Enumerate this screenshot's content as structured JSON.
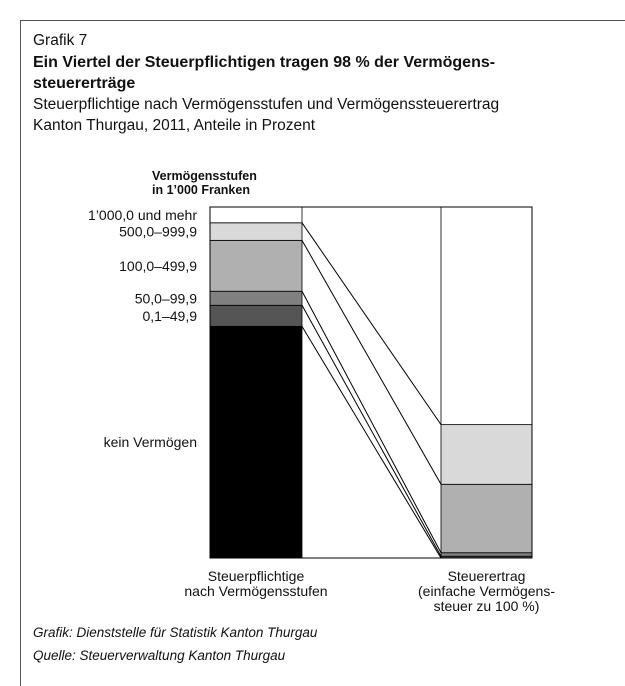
{
  "chart_data": {
    "type": "stacked_bar_100",
    "label": "Grafik 7",
    "title": [
      "Ein Viertel der Steuerpflichtigen tragen 98 % der Vermögens-",
      "steuererträge"
    ],
    "subtitle": [
      "Steuerpflichtige nach Vermögensstufen und Vermögenssteuerertrag",
      "Kanton Thurgau, 2011, Anteile in Prozent"
    ],
    "legend_title": [
      "Vermögensstufen",
      "in 1’000 Franken"
    ],
    "categories": [
      [
        "Steuerpflichtige",
        "nach Vermögensstufen"
      ],
      [
        "Steuerertrag",
        "(einfache Vermögens-",
        "steuer zu 100 %)"
      ]
    ],
    "ylim": [
      0,
      100
    ],
    "series": [
      {
        "name": "kein Vermögen",
        "color": "#000000",
        "values": [
          66,
          0
        ]
      },
      {
        "name": "0,1–49,9",
        "color": "#555555",
        "values": [
          6,
          0.5
        ]
      },
      {
        "name": "50,0–99,9",
        "color": "#808080",
        "values": [
          4,
          1
        ]
      },
      {
        "name": "100,0–499,9",
        "color": "#b0b0b0",
        "values": [
          14.5,
          19.5
        ]
      },
      {
        "name": "500,0–999,9",
        "color": "#d9d9d9",
        "values": [
          5,
          17
        ]
      },
      {
        "name": "1’000,0 und mehr",
        "color": "#ffffff",
        "values": [
          4.5,
          62
        ]
      }
    ],
    "sources": [
      "Grafik: Dienststelle für Statistik Kanton Thurgau",
      "Quelle: Steuerverwaltung Kanton Thurgau"
    ]
  }
}
